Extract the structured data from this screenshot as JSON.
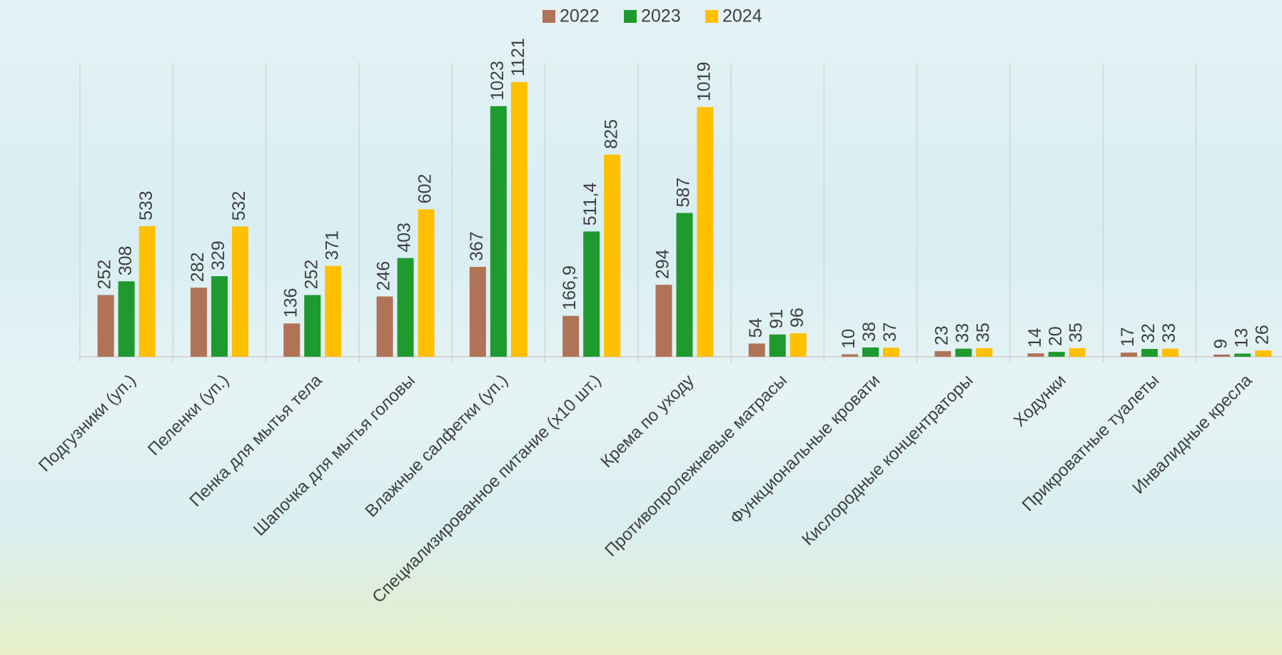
{
  "chart_data": {
    "type": "bar",
    "categories": [
      "Подгузники (уп.)",
      "Пеленки (уп.)",
      "Пенка для мытья тела",
      "Шапочка для мытья головы",
      "Влажные салфетки (уп.)",
      "Специализированное питание (х10 шт.)",
      "Крема по уходу",
      "Противопролежневые матрасы",
      "Функциональные кровати",
      "Кислородные концентраторы",
      "Ходунки",
      "Прикроватные туалеты",
      "Инвалидные кресла"
    ],
    "series": [
      {
        "name": "2022",
        "color": "#b07357",
        "values": [
          252,
          282,
          136,
          246,
          367,
          166.9,
          294,
          54,
          10,
          23,
          14,
          17,
          9
        ],
        "value_labels": [
          "252",
          "282",
          "136",
          "246",
          "367",
          "166,9",
          "294",
          "54",
          "10",
          "23",
          "14",
          "17",
          "9"
        ]
      },
      {
        "name": "2023",
        "color": "#1f9a2f",
        "values": [
          308,
          329,
          252,
          403,
          1023,
          511.4,
          587,
          91,
          38,
          33,
          20,
          32,
          13
        ],
        "value_labels": [
          "308",
          "329",
          "252",
          "403",
          "1023",
          "511,4",
          "587",
          "91",
          "38",
          "33",
          "20",
          "32",
          "13"
        ]
      },
      {
        "name": "2024",
        "color": "#ffc000",
        "values": [
          533,
          532,
          371,
          602,
          1121,
          825,
          1019,
          96,
          37,
          35,
          35,
          33,
          26
        ]
      }
    ],
    "ylim": [
      0,
      1200
    ],
    "legend": "top",
    "grid": true
  }
}
